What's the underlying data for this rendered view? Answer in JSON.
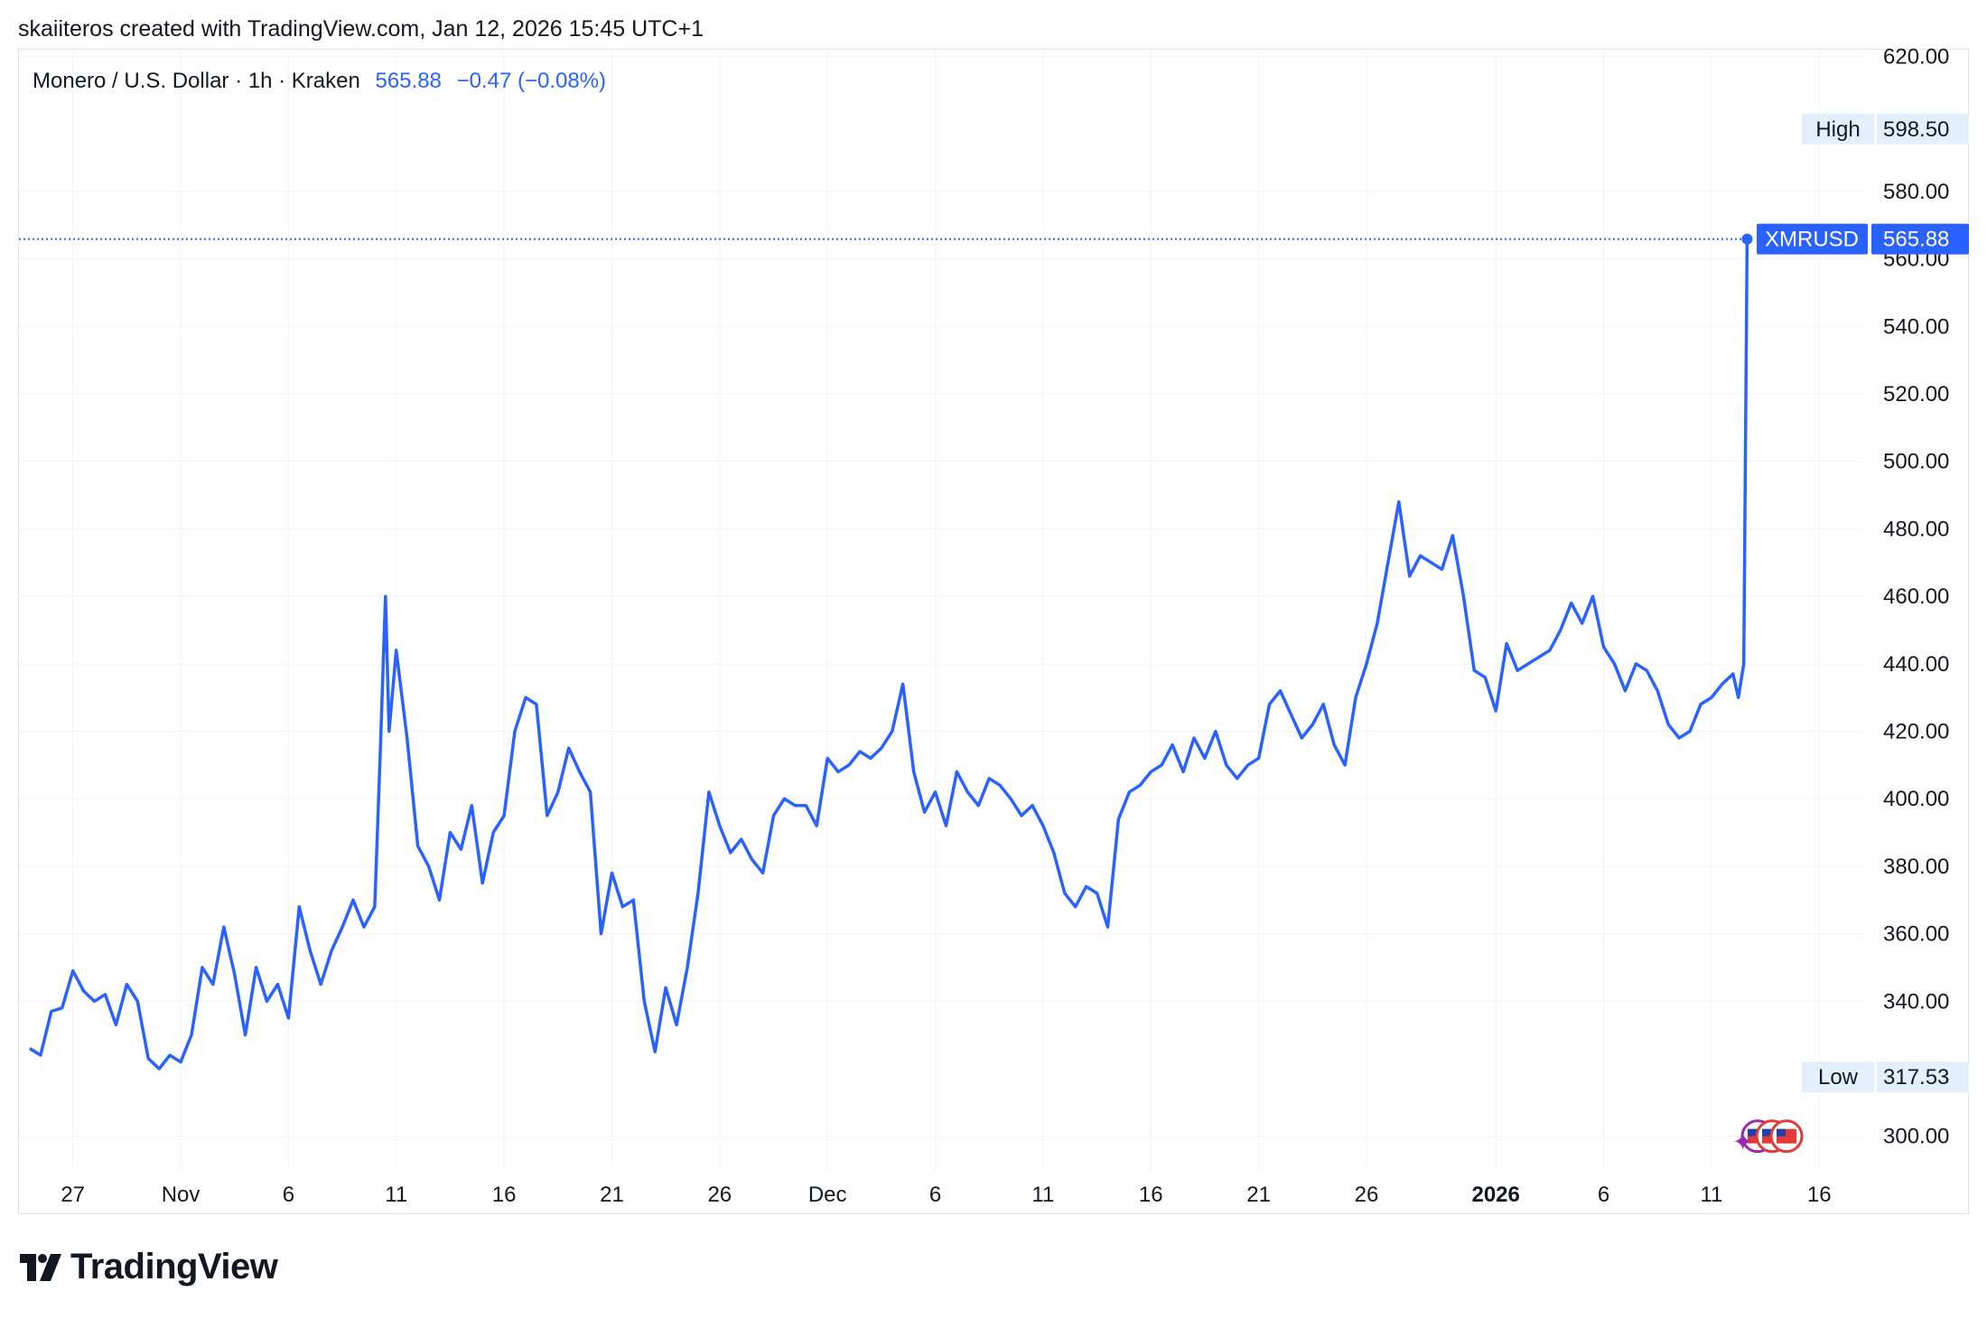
{
  "caption": "skaiiteros created with TradingView.com, Jan 12, 2026 15:45 UTC+1",
  "legend": {
    "symbol": "Monero / U.S. Dollar · 1h · Kraken",
    "price": "565.88",
    "change": "−0.47 (−0.08%)"
  },
  "brand": {
    "name": "TradingView",
    "logo_icon": "tradingview-logo-icon"
  },
  "colors": {
    "line": "#2962ff",
    "grid": "#f0f3fa",
    "text": "#131722",
    "tag_bg": "#e3effd"
  },
  "chart_data": {
    "type": "line",
    "symbol": "XMRUSD",
    "interval": "1h",
    "ylim": [
      290,
      622
    ],
    "y_ticks": [
      "300.00",
      "340.00",
      "360.00",
      "380.00",
      "400.00",
      "420.00",
      "440.00",
      "460.00",
      "480.00",
      "500.00",
      "520.00",
      "540.00",
      "560.00",
      "580.00",
      "620.00"
    ],
    "x_labels": [
      {
        "label": "27",
        "date": "2025-10-27"
      },
      {
        "label": "Nov",
        "date": "2025-11-01"
      },
      {
        "label": "6",
        "date": "2025-11-06"
      },
      {
        "label": "11",
        "date": "2025-11-11"
      },
      {
        "label": "16",
        "date": "2025-11-16"
      },
      {
        "label": "21",
        "date": "2025-11-21"
      },
      {
        "label": "26",
        "date": "2025-11-26"
      },
      {
        "label": "Dec",
        "date": "2025-12-01"
      },
      {
        "label": "6",
        "date": "2025-12-06"
      },
      {
        "label": "11",
        "date": "2025-12-11"
      },
      {
        "label": "16",
        "date": "2025-12-16"
      },
      {
        "label": "21",
        "date": "2025-12-21"
      },
      {
        "label": "26",
        "date": "2025-12-26"
      },
      {
        "label": "2026",
        "date": "2026-01-01",
        "bold": true
      },
      {
        "label": "6",
        "date": "2026-01-06"
      },
      {
        "label": "11",
        "date": "2026-01-11"
      },
      {
        "label": "16",
        "date": "2026-01-16"
      }
    ],
    "x_domain": [
      "2025-10-24T12:00",
      "2026-01-18T00:00"
    ],
    "series": [
      {
        "points": [
          [
            "2025-10-25T00:00",
            326
          ],
          [
            "2025-10-25T12:00",
            324
          ],
          [
            "2025-10-26T00:00",
            337
          ],
          [
            "2025-10-26T12:00",
            338
          ],
          [
            "2025-10-27T00:00",
            349
          ],
          [
            "2025-10-27T12:00",
            343
          ],
          [
            "2025-10-28T00:00",
            340
          ],
          [
            "2025-10-28T12:00",
            342
          ],
          [
            "2025-10-29T00:00",
            333
          ],
          [
            "2025-10-29T12:00",
            345
          ],
          [
            "2025-10-30T00:00",
            340
          ],
          [
            "2025-10-30T12:00",
            323
          ],
          [
            "2025-10-31T00:00",
            320
          ],
          [
            "2025-10-31T12:00",
            324
          ],
          [
            "2025-11-01T00:00",
            322
          ],
          [
            "2025-11-01T12:00",
            330
          ],
          [
            "2025-11-02T00:00",
            350
          ],
          [
            "2025-11-02T12:00",
            345
          ],
          [
            "2025-11-03T00:00",
            362
          ],
          [
            "2025-11-03T12:00",
            348
          ],
          [
            "2025-11-04T00:00",
            330
          ],
          [
            "2025-11-04T12:00",
            350
          ],
          [
            "2025-11-05T00:00",
            340
          ],
          [
            "2025-11-05T12:00",
            345
          ],
          [
            "2025-11-06T00:00",
            335
          ],
          [
            "2025-11-06T12:00",
            368
          ],
          [
            "2025-11-07T00:00",
            355
          ],
          [
            "2025-11-07T12:00",
            345
          ],
          [
            "2025-11-08T00:00",
            355
          ],
          [
            "2025-11-08T12:00",
            362
          ],
          [
            "2025-11-09T00:00",
            370
          ],
          [
            "2025-11-09T12:00",
            362
          ],
          [
            "2025-11-10T00:00",
            368
          ],
          [
            "2025-11-10T06:00",
            412
          ],
          [
            "2025-11-10T12:00",
            460
          ],
          [
            "2025-11-10T16:00",
            420
          ],
          [
            "2025-11-11T00:00",
            444
          ],
          [
            "2025-11-11T12:00",
            418
          ],
          [
            "2025-11-12T00:00",
            386
          ],
          [
            "2025-11-12T12:00",
            380
          ],
          [
            "2025-11-13T00:00",
            370
          ],
          [
            "2025-11-13T12:00",
            390
          ],
          [
            "2025-11-14T00:00",
            385
          ],
          [
            "2025-11-14T12:00",
            398
          ],
          [
            "2025-11-15T00:00",
            375
          ],
          [
            "2025-11-15T12:00",
            390
          ],
          [
            "2025-11-16T00:00",
            395
          ],
          [
            "2025-11-16T12:00",
            420
          ],
          [
            "2025-11-17T00:00",
            430
          ],
          [
            "2025-11-17T12:00",
            428
          ],
          [
            "2025-11-18T00:00",
            395
          ],
          [
            "2025-11-18T12:00",
            402
          ],
          [
            "2025-11-19T00:00",
            415
          ],
          [
            "2025-11-19T12:00",
            408
          ],
          [
            "2025-11-20T00:00",
            402
          ],
          [
            "2025-11-20T12:00",
            360
          ],
          [
            "2025-11-21T00:00",
            378
          ],
          [
            "2025-11-21T12:00",
            368
          ],
          [
            "2025-11-22T00:00",
            370
          ],
          [
            "2025-11-22T12:00",
            340
          ],
          [
            "2025-11-23T00:00",
            325
          ],
          [
            "2025-11-23T12:00",
            344
          ],
          [
            "2025-11-24T00:00",
            333
          ],
          [
            "2025-11-24T12:00",
            350
          ],
          [
            "2025-11-25T00:00",
            372
          ],
          [
            "2025-11-25T12:00",
            402
          ],
          [
            "2025-11-26T00:00",
            392
          ],
          [
            "2025-11-26T12:00",
            384
          ],
          [
            "2025-11-27T00:00",
            388
          ],
          [
            "2025-11-27T12:00",
            382
          ],
          [
            "2025-11-28T00:00",
            378
          ],
          [
            "2025-11-28T12:00",
            395
          ],
          [
            "2025-11-29T00:00",
            400
          ],
          [
            "2025-11-29T12:00",
            398
          ],
          [
            "2025-11-30T00:00",
            398
          ],
          [
            "2025-11-30T12:00",
            392
          ],
          [
            "2025-12-01T00:00",
            412
          ],
          [
            "2025-12-01T12:00",
            408
          ],
          [
            "2025-12-02T00:00",
            410
          ],
          [
            "2025-12-02T12:00",
            414
          ],
          [
            "2025-12-03T00:00",
            412
          ],
          [
            "2025-12-03T12:00",
            415
          ],
          [
            "2025-12-04T00:00",
            420
          ],
          [
            "2025-12-04T12:00",
            434
          ],
          [
            "2025-12-05T00:00",
            408
          ],
          [
            "2025-12-05T12:00",
            396
          ],
          [
            "2025-12-06T00:00",
            402
          ],
          [
            "2025-12-06T12:00",
            392
          ],
          [
            "2025-12-07T00:00",
            408
          ],
          [
            "2025-12-07T12:00",
            402
          ],
          [
            "2025-12-08T00:00",
            398
          ],
          [
            "2025-12-08T12:00",
            406
          ],
          [
            "2025-12-09T00:00",
            404
          ],
          [
            "2025-12-09T12:00",
            400
          ],
          [
            "2025-12-10T00:00",
            395
          ],
          [
            "2025-12-10T12:00",
            398
          ],
          [
            "2025-12-11T00:00",
            392
          ],
          [
            "2025-12-11T12:00",
            384
          ],
          [
            "2025-12-12T00:00",
            372
          ],
          [
            "2025-12-12T12:00",
            368
          ],
          [
            "2025-12-13T00:00",
            374
          ],
          [
            "2025-12-13T12:00",
            372
          ],
          [
            "2025-12-14T00:00",
            362
          ],
          [
            "2025-12-14T12:00",
            394
          ],
          [
            "2025-12-15T00:00",
            402
          ],
          [
            "2025-12-15T12:00",
            404
          ],
          [
            "2025-12-16T00:00",
            408
          ],
          [
            "2025-12-16T12:00",
            410
          ],
          [
            "2025-12-17T00:00",
            416
          ],
          [
            "2025-12-17T12:00",
            408
          ],
          [
            "2025-12-18T00:00",
            418
          ],
          [
            "2025-12-18T12:00",
            412
          ],
          [
            "2025-12-19T00:00",
            420
          ],
          [
            "2025-12-19T12:00",
            410
          ],
          [
            "2025-12-20T00:00",
            406
          ],
          [
            "2025-12-20T12:00",
            410
          ],
          [
            "2025-12-21T00:00",
            412
          ],
          [
            "2025-12-21T12:00",
            428
          ],
          [
            "2025-12-22T00:00",
            432
          ],
          [
            "2025-12-22T12:00",
            425
          ],
          [
            "2025-12-23T00:00",
            418
          ],
          [
            "2025-12-23T12:00",
            422
          ],
          [
            "2025-12-24T00:00",
            428
          ],
          [
            "2025-12-24T12:00",
            416
          ],
          [
            "2025-12-25T00:00",
            410
          ],
          [
            "2025-12-25T12:00",
            430
          ],
          [
            "2025-12-26T00:00",
            440
          ],
          [
            "2025-12-26T12:00",
            452
          ],
          [
            "2025-12-27T00:00",
            470
          ],
          [
            "2025-12-27T12:00",
            488
          ],
          [
            "2025-12-28T00:00",
            466
          ],
          [
            "2025-12-28T12:00",
            472
          ],
          [
            "2025-12-29T00:00",
            470
          ],
          [
            "2025-12-29T12:00",
            468
          ],
          [
            "2025-12-30T00:00",
            478
          ],
          [
            "2025-12-30T12:00",
            460
          ],
          [
            "2025-12-31T00:00",
            438
          ],
          [
            "2025-12-31T12:00",
            436
          ],
          [
            "2026-01-01T00:00",
            426
          ],
          [
            "2026-01-01T12:00",
            446
          ],
          [
            "2026-01-02T00:00",
            438
          ],
          [
            "2026-01-02T12:00",
            440
          ],
          [
            "2026-01-03T00:00",
            442
          ],
          [
            "2026-01-03T12:00",
            444
          ],
          [
            "2026-01-04T00:00",
            450
          ],
          [
            "2026-01-04T12:00",
            458
          ],
          [
            "2026-01-05T00:00",
            452
          ],
          [
            "2026-01-05T12:00",
            460
          ],
          [
            "2026-01-06T00:00",
            445
          ],
          [
            "2026-01-06T12:00",
            440
          ],
          [
            "2026-01-07T00:00",
            432
          ],
          [
            "2026-01-07T12:00",
            440
          ],
          [
            "2026-01-08T00:00",
            438
          ],
          [
            "2026-01-08T12:00",
            432
          ],
          [
            "2026-01-09T00:00",
            422
          ],
          [
            "2026-01-09T12:00",
            418
          ],
          [
            "2026-01-10T00:00",
            420
          ],
          [
            "2026-01-10T12:00",
            428
          ],
          [
            "2026-01-11T00:00",
            430
          ],
          [
            "2026-01-11T12:00",
            434
          ],
          [
            "2026-01-12T00:00",
            437
          ],
          [
            "2026-01-12T06:00",
            430
          ],
          [
            "2026-01-12T12:00",
            440
          ],
          [
            "2026-01-12T15:45",
            565.88
          ]
        ]
      }
    ],
    "high": {
      "label": "High",
      "value": "598.50"
    },
    "low": {
      "label": "Low",
      "value": "317.53"
    },
    "last": {
      "label": "XMRUSD",
      "value": "565.88",
      "y": 565.88
    }
  }
}
